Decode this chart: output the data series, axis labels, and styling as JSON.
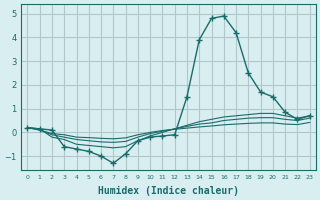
{
  "xlabel": "Humidex (Indice chaleur)",
  "ylabel": "",
  "background_color": "#d8eef0",
  "grid_color": "#b0c8cc",
  "line_color": "#1a6b6b",
  "x_data": [
    0,
    1,
    2,
    3,
    4,
    5,
    6,
    7,
    8,
    9,
    10,
    11,
    12,
    13,
    14,
    15,
    16,
    17,
    18,
    19,
    20,
    21,
    22,
    23
  ],
  "series": [
    [
      0.2,
      0.15,
      0.1,
      -0.6,
      -0.7,
      -0.8,
      -1.0,
      -1.3,
      -0.9,
      -0.35,
      -0.2,
      -0.15,
      -0.1,
      1.5,
      3.9,
      4.8,
      4.9,
      4.2,
      2.5,
      1.7,
      1.5,
      0.85,
      0.55,
      0.7
    ],
    [
      0.2,
      0.15,
      -0.2,
      -0.3,
      -0.5,
      -0.55,
      -0.6,
      -0.65,
      -0.6,
      -0.35,
      -0.15,
      0.0,
      0.15,
      0.3,
      0.45,
      0.55,
      0.65,
      0.7,
      0.75,
      0.8,
      0.8,
      0.7,
      0.6,
      0.7
    ],
    [
      0.2,
      0.1,
      -0.1,
      -0.2,
      -0.3,
      -0.35,
      -0.4,
      -0.42,
      -0.38,
      -0.2,
      -0.05,
      0.05,
      0.15,
      0.25,
      0.35,
      0.4,
      0.5,
      0.55,
      0.6,
      0.62,
      0.62,
      0.55,
      0.5,
      0.6
    ],
    [
      0.2,
      0.1,
      -0.05,
      -0.1,
      -0.2,
      -0.22,
      -0.25,
      -0.27,
      -0.23,
      -0.1,
      0.0,
      0.08,
      0.13,
      0.18,
      0.23,
      0.27,
      0.32,
      0.35,
      0.38,
      0.4,
      0.4,
      0.35,
      0.33,
      0.42
    ]
  ],
  "ylim": [
    -1.6,
    5.4
  ],
  "xlim": [
    -0.5,
    23.5
  ],
  "yticks": [
    -1,
    0,
    1,
    2,
    3,
    4,
    5
  ],
  "xtick_positions": [
    0,
    1,
    2,
    3,
    4,
    5,
    6,
    7,
    8,
    9,
    10,
    11,
    12,
    13,
    14,
    15,
    16,
    17,
    18,
    19,
    20,
    21,
    22,
    23
  ],
  "xtick_labels": [
    "0",
    "1",
    "2",
    "3",
    "4",
    "5",
    "6",
    "7",
    "8",
    "9",
    "10",
    "11",
    "12",
    "13",
    "14",
    "15",
    "16",
    "17",
    "18",
    "19",
    "20",
    "21",
    "22",
    "23"
  ]
}
